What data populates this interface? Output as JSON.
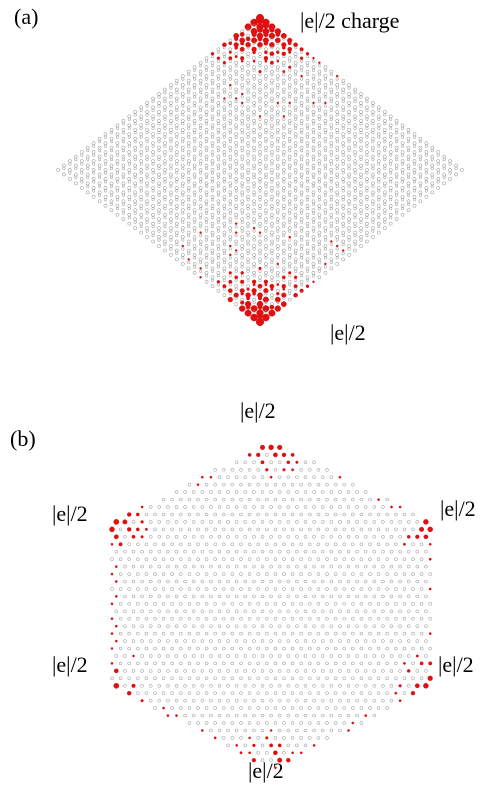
{
  "panels": [
    {
      "id": "a",
      "panel_label": "(a)",
      "annotations": [
        "|e|/2 charge",
        "|e|/2"
      ]
    },
    {
      "id": "b",
      "panel_label": "(b)",
      "annotations": [
        "|e|/2",
        "|e|/2",
        "|e|/2",
        "|e|/2",
        "|e|/2",
        "|e|/2"
      ]
    }
  ],
  "colors": {
    "lattice": "#8a8a8a",
    "charge": "#e01010"
  }
}
